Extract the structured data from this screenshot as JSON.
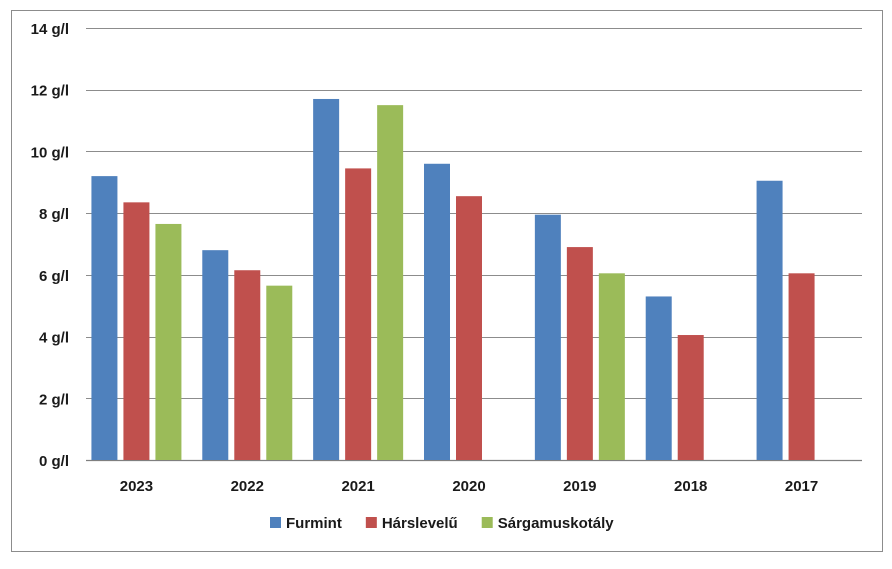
{
  "chart_data": {
    "type": "bar",
    "categories": [
      "2023",
      "2022",
      "2021",
      "2020",
      "2019",
      "2018",
      "2017"
    ],
    "series": [
      {
        "name": "Furmint",
        "color": "#4F81BD",
        "values": [
          9.2,
          6.8,
          11.7,
          9.6,
          7.95,
          5.3,
          9.05
        ]
      },
      {
        "name": "Hárslevelű",
        "color": "#C0504D",
        "values": [
          8.35,
          6.15,
          9.45,
          8.55,
          6.9,
          4.05,
          6.05
        ]
      },
      {
        "name": "Sárgamuskotály",
        "color": "#9BBB59",
        "values": [
          7.65,
          5.65,
          11.5,
          null,
          6.05,
          null,
          null
        ]
      }
    ],
    "y_ticks": [
      "0 g/l",
      "2 g/l",
      "4 g/l",
      "6 g/l",
      "8 g/l",
      "10 g/l",
      "12 g/l",
      "14 g/l"
    ],
    "ylim": [
      0,
      14
    ],
    "y_tick_step": 2,
    "grid": true,
    "legend_position": "bottom",
    "title": "",
    "xlabel": "",
    "ylabel": ""
  }
}
